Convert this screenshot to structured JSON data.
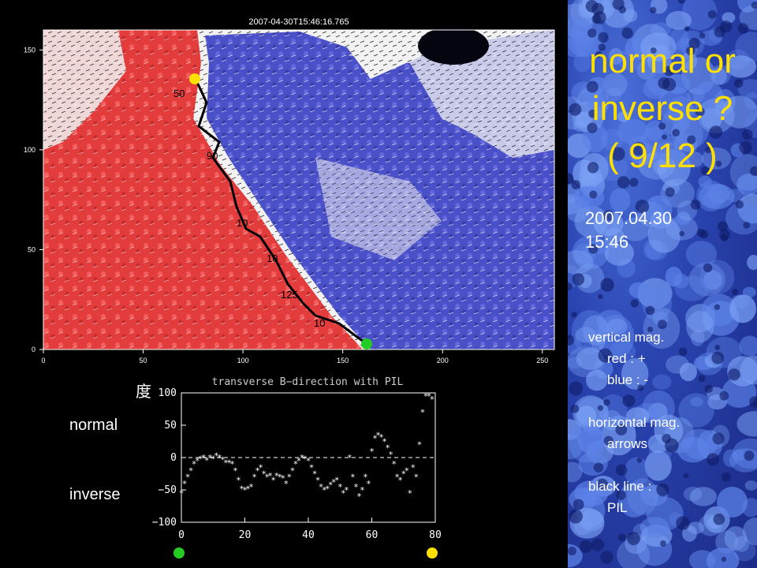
{
  "map": {
    "timestamp": "2007-04-30T15:46:16.765",
    "x_ticks": [
      "0",
      "50",
      "100",
      "150",
      "200",
      "250"
    ],
    "y_ticks": [
      "0",
      "50",
      "100",
      "150"
    ],
    "pil_labels": [
      "50",
      "90",
      "10",
      "10",
      "125",
      "10"
    ],
    "markers": [
      {
        "name": "yellow-marker",
        "color": "#ffe000"
      },
      {
        "name": "green-marker",
        "color": "#22cc22"
      }
    ]
  },
  "plot": {
    "ylabel": "度",
    "normal_label": "normal",
    "inverse_label": "inverse",
    "end_markers": [
      {
        "color": "#22cc22"
      },
      {
        "color": "#ffe000"
      }
    ]
  },
  "chart_data": {
    "type": "scatter",
    "title": "transverse B−direction with PIL",
    "xlabel": "",
    "ylabel": "度",
    "xlim": [
      0,
      80
    ],
    "ylim": [
      -100,
      100
    ],
    "x_ticks": [
      0,
      20,
      40,
      60,
      80
    ],
    "y_ticks": [
      100,
      50,
      0,
      -50,
      -100
    ],
    "y_tick_labels": [
      "100",
      "50",
      "0",
      "−50",
      "−100"
    ],
    "reference_line": 0,
    "grid": false,
    "marker": "asterisk",
    "x": [
      0,
      1,
      2,
      3,
      4,
      5,
      6,
      7,
      8,
      9,
      10,
      11,
      12,
      13,
      14,
      15,
      16,
      17,
      18,
      19,
      20,
      21,
      22,
      23,
      24,
      25,
      26,
      27,
      28,
      29,
      30,
      31,
      32,
      33,
      34,
      35,
      36,
      37,
      38,
      39,
      40,
      41,
      42,
      43,
      44,
      45,
      46,
      47,
      48,
      49,
      50,
      51,
      52,
      53,
      54,
      55,
      56,
      57,
      58,
      59,
      60,
      61,
      62,
      63,
      64,
      65,
      66,
      67,
      68,
      69,
      70,
      71,
      72,
      73,
      74,
      75,
      76,
      77,
      78,
      79
    ],
    "y": [
      -55,
      -40,
      -30,
      -20,
      -10,
      -5,
      -2,
      0,
      -4,
      0,
      -2,
      3,
      0,
      -3,
      -8,
      -8,
      -10,
      -20,
      -35,
      -48,
      -50,
      -48,
      -45,
      -30,
      -20,
      -15,
      -25,
      -30,
      -28,
      -35,
      -28,
      -30,
      -32,
      -40,
      -30,
      -20,
      -10,
      -5,
      0,
      -2,
      -5,
      -15,
      -25,
      -35,
      -45,
      -50,
      -48,
      -42,
      -38,
      -35,
      -45,
      -55,
      -50,
      0,
      -30,
      -45,
      -60,
      -50,
      -30,
      -40,
      10,
      30,
      35,
      32,
      25,
      15,
      5,
      -10,
      -30,
      -35,
      -25,
      -20,
      -55,
      -15,
      -30,
      20,
      70,
      95,
      95,
      90
    ]
  },
  "sidebar": {
    "title_line1": "normal or",
    "title_line2": "inverse ?",
    "title_line3": "( 9/12 )",
    "date": "2007.04.30",
    "time": "15:46",
    "legend": {
      "vertical_heading": "vertical mag.",
      "red_line": "red  :  +",
      "blue_line": "blue :  -",
      "horizontal_heading": "horizontal mag.",
      "arrows_line": "arrows",
      "pil_heading": "black line :",
      "pil_line": "PIL"
    },
    "colors": {
      "title": "#ffe000",
      "text": "#ffffff"
    }
  }
}
